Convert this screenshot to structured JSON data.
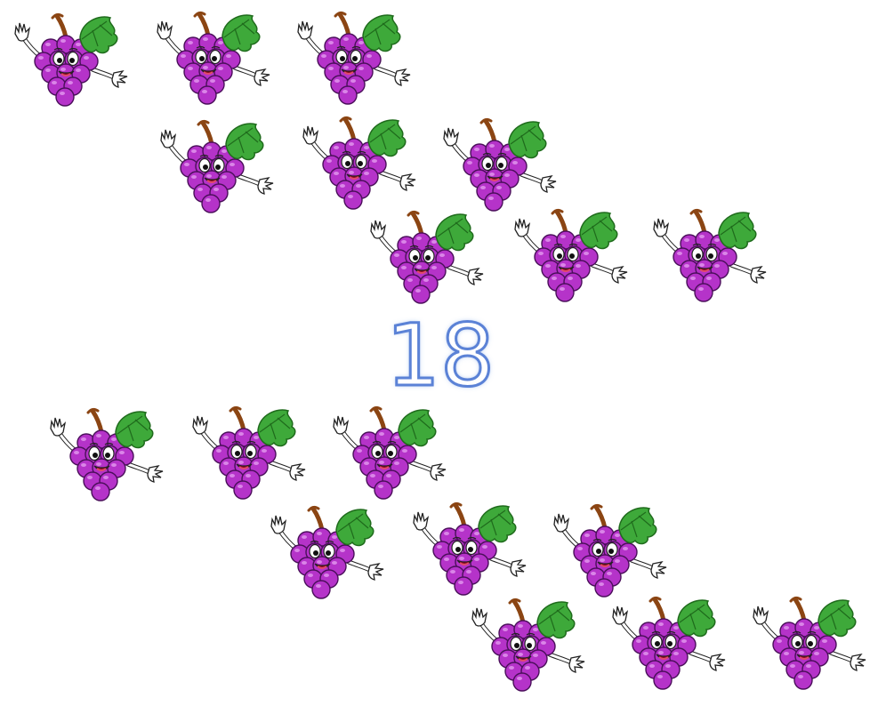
{
  "count": {
    "label": "18"
  },
  "grapes": {
    "icon": "grape-cluster-cartoon-icon",
    "colors": {
      "berry": "#b533c9",
      "berry_dark": "#7a1f8c",
      "leaf": "#3ea93a",
      "leaf_dark": "#1f6b1c",
      "stem": "#8b4513",
      "outline": "#4a0f5a",
      "glove": "#ffffff"
    },
    "groups": [
      {
        "name": "top-group",
        "count": 9
      },
      {
        "name": "bottom-group",
        "count": 9
      }
    ]
  }
}
